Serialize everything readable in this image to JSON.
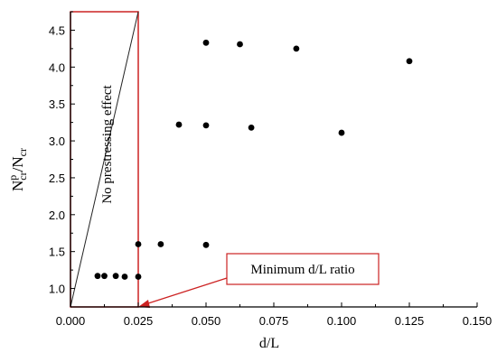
{
  "chart_data": {
    "type": "scatter",
    "xlabel": "d/L",
    "ylabel": {
      "base_n": "N",
      "sup": "p",
      "sub1": "cr",
      "slash": "/",
      "base_n2": "N",
      "sub2": "cr"
    },
    "xlim": [
      0,
      0.15
    ],
    "ylim": [
      0.75,
      4.75
    ],
    "xticks": [
      "0.000",
      "0.025",
      "0.050",
      "0.075",
      "0.100",
      "0.125",
      "0.150"
    ],
    "yticks": [
      "1.0",
      "1.5",
      "2.0",
      "2.5",
      "3.0",
      "3.5",
      "4.0",
      "4.5"
    ],
    "grid": false,
    "series": [
      {
        "points": [
          {
            "x": 0.01,
            "y": 1.17
          },
          {
            "x": 0.0125,
            "y": 1.17
          },
          {
            "x": 0.0167,
            "y": 1.17
          },
          {
            "x": 0.02,
            "y": 1.16
          },
          {
            "x": 0.025,
            "y": 1.16
          },
          {
            "x": 0.025,
            "y": 1.6
          },
          {
            "x": 0.0333,
            "y": 1.6
          },
          {
            "x": 0.05,
            "y": 1.59
          },
          {
            "x": 0.04,
            "y": 3.22
          },
          {
            "x": 0.05,
            "y": 3.21
          },
          {
            "x": 0.0667,
            "y": 3.18
          },
          {
            "x": 0.1,
            "y": 3.11
          },
          {
            "x": 0.05,
            "y": 4.33
          },
          {
            "x": 0.0625,
            "y": 4.31
          },
          {
            "x": 0.0833,
            "y": 4.25
          },
          {
            "x": 0.125,
            "y": 4.08
          }
        ]
      }
    ],
    "annotations": {
      "no_prestress_label": "No prestressing effect",
      "min_ratio_label": "Minimum d/L ratio",
      "no_prestress_line": {
        "from": {
          "x": 0.0,
          "y": 0.75
        },
        "to": {
          "x": 0.025,
          "y": 4.75
        }
      },
      "box_x_range": [
        0.0,
        0.025
      ],
      "arrow_target": {
        "x": 0.025,
        "y": 0.75
      }
    },
    "colors": {
      "points": "#000000",
      "annotation": "#cc2222",
      "axis": "#000000"
    }
  }
}
